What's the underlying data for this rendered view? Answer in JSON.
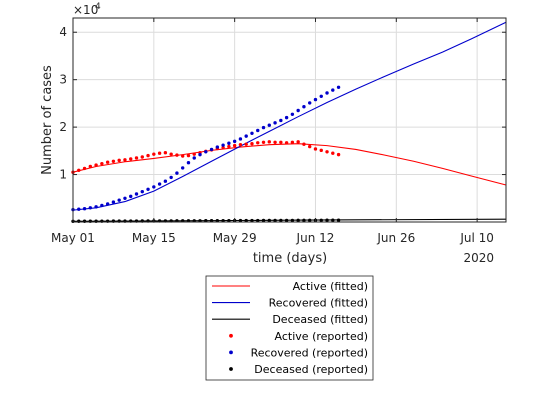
{
  "chart_data": {
    "type": "line",
    "xlabel": "time (days)",
    "ylabel": "Number of cases",
    "y_exponent_label": "×10",
    "y_exponent_power": "4",
    "year_label": "2020",
    "x_ticks": [
      {
        "label": "May 01",
        "date": "2020-05-01"
      },
      {
        "label": "May 15",
        "date": "2020-05-15"
      },
      {
        "label": "May 29",
        "date": "2020-05-29"
      },
      {
        "label": "Jun 12",
        "date": "2020-06-12"
      },
      {
        "label": "Jun 26",
        "date": "2020-06-26"
      },
      {
        "label": "Jul 10",
        "date": "2020-07-10"
      }
    ],
    "xlim": [
      "2020-05-01",
      "2020-07-15"
    ],
    "y_ticks": [
      {
        "label": "1",
        "value": 10000
      },
      {
        "label": "2",
        "value": 20000
      },
      {
        "label": "3",
        "value": 30000
      },
      {
        "label": "4",
        "value": 40000
      }
    ],
    "ylim": [
      0,
      43000
    ],
    "grid": true,
    "legend_position": "below",
    "colors": {
      "active": "#ff0000",
      "recovered": "#0000cc",
      "deceased": "#000000"
    },
    "series": [
      {
        "name": "Active (fitted)",
        "kind": "line",
        "color": "#ff0000",
        "points": [
          [
            "2020-05-01",
            10500
          ],
          [
            "2020-05-05",
            11700
          ],
          [
            "2020-05-10",
            12700
          ],
          [
            "2020-05-15",
            13400
          ],
          [
            "2020-05-20",
            14200
          ],
          [
            "2020-05-25",
            15100
          ],
          [
            "2020-05-30",
            15800
          ],
          [
            "2020-06-04",
            16300
          ],
          [
            "2020-06-09",
            16500
          ],
          [
            "2020-06-14",
            16100
          ],
          [
            "2020-06-19",
            15300
          ],
          [
            "2020-06-24",
            14100
          ],
          [
            "2020-06-29",
            12800
          ],
          [
            "2020-07-04",
            11300
          ],
          [
            "2020-07-09",
            9700
          ],
          [
            "2020-07-15",
            7800
          ]
        ]
      },
      {
        "name": "Recovered (fitted)",
        "kind": "line",
        "color": "#0000cc",
        "points": [
          [
            "2020-05-01",
            2500
          ],
          [
            "2020-05-05",
            3000
          ],
          [
            "2020-05-10",
            4300
          ],
          [
            "2020-05-15",
            6500
          ],
          [
            "2020-05-20",
            9600
          ],
          [
            "2020-05-25",
            12800
          ],
          [
            "2020-05-30",
            16000
          ],
          [
            "2020-06-04",
            19100
          ],
          [
            "2020-06-09",
            22200
          ],
          [
            "2020-06-14",
            25200
          ],
          [
            "2020-06-19",
            28000
          ],
          [
            "2020-06-24",
            30700
          ],
          [
            "2020-06-29",
            33300
          ],
          [
            "2020-07-04",
            35800
          ],
          [
            "2020-07-09",
            38600
          ],
          [
            "2020-07-15",
            42100
          ]
        ]
      },
      {
        "name": "Deceased (fitted)",
        "kind": "line",
        "color": "#000000",
        "points": [
          [
            "2020-05-01",
            150
          ],
          [
            "2020-05-20",
            250
          ],
          [
            "2020-06-10",
            400
          ],
          [
            "2020-07-15",
            600
          ]
        ]
      },
      {
        "name": "Active (reported)",
        "kind": "dots",
        "color": "#ff0000",
        "points": [
          [
            "2020-05-01",
            10500
          ],
          [
            "2020-05-02",
            10900
          ],
          [
            "2020-05-03",
            11300
          ],
          [
            "2020-05-04",
            11700
          ],
          [
            "2020-05-05",
            12000
          ],
          [
            "2020-05-06",
            12300
          ],
          [
            "2020-05-07",
            12600
          ],
          [
            "2020-05-08",
            12800
          ],
          [
            "2020-05-09",
            13000
          ],
          [
            "2020-05-10",
            13100
          ],
          [
            "2020-05-11",
            13300
          ],
          [
            "2020-05-12",
            13500
          ],
          [
            "2020-05-13",
            13700
          ],
          [
            "2020-05-14",
            14000
          ],
          [
            "2020-05-15",
            14300
          ],
          [
            "2020-05-16",
            14500
          ],
          [
            "2020-05-17",
            14600
          ],
          [
            "2020-05-18",
            14300
          ],
          [
            "2020-05-19",
            14100
          ],
          [
            "2020-05-20",
            13900
          ],
          [
            "2020-05-21",
            14000
          ],
          [
            "2020-05-22",
            14300
          ],
          [
            "2020-05-23",
            14600
          ],
          [
            "2020-05-24",
            14900
          ],
          [
            "2020-05-25",
            15200
          ],
          [
            "2020-05-26",
            15500
          ],
          [
            "2020-05-27",
            15700
          ],
          [
            "2020-05-28",
            15900
          ],
          [
            "2020-05-29",
            16100
          ],
          [
            "2020-05-30",
            16300
          ],
          [
            "2020-05-31",
            16400
          ],
          [
            "2020-06-01",
            16500
          ],
          [
            "2020-06-02",
            16700
          ],
          [
            "2020-06-03",
            16800
          ],
          [
            "2020-06-04",
            16900
          ],
          [
            "2020-06-05",
            16800
          ],
          [
            "2020-06-06",
            16800
          ],
          [
            "2020-06-07",
            16700
          ],
          [
            "2020-06-08",
            16800
          ],
          [
            "2020-06-09",
            16900
          ],
          [
            "2020-06-10",
            16400
          ],
          [
            "2020-06-11",
            15900
          ],
          [
            "2020-06-12",
            15400
          ],
          [
            "2020-06-13",
            15100
          ],
          [
            "2020-06-14",
            14800
          ],
          [
            "2020-06-15",
            14500
          ],
          [
            "2020-06-16",
            14200
          ]
        ]
      },
      {
        "name": "Recovered (reported)",
        "kind": "dots",
        "color": "#0000cc",
        "points": [
          [
            "2020-05-01",
            2600
          ],
          [
            "2020-05-02",
            2700
          ],
          [
            "2020-05-03",
            2800
          ],
          [
            "2020-05-04",
            3000
          ],
          [
            "2020-05-05",
            3200
          ],
          [
            "2020-05-06",
            3500
          ],
          [
            "2020-05-07",
            3800
          ],
          [
            "2020-05-08",
            4200
          ],
          [
            "2020-05-09",
            4600
          ],
          [
            "2020-05-10",
            5000
          ],
          [
            "2020-05-11",
            5400
          ],
          [
            "2020-05-12",
            5900
          ],
          [
            "2020-05-13",
            6400
          ],
          [
            "2020-05-14",
            6900
          ],
          [
            "2020-05-15",
            7400
          ],
          [
            "2020-05-16",
            8000
          ],
          [
            "2020-05-17",
            8600
          ],
          [
            "2020-05-18",
            9400
          ],
          [
            "2020-05-19",
            10300
          ],
          [
            "2020-05-20",
            11400
          ],
          [
            "2020-05-21",
            12500
          ],
          [
            "2020-05-22",
            13500
          ],
          [
            "2020-05-23",
            14200
          ],
          [
            "2020-05-24",
            14800
          ],
          [
            "2020-05-25",
            15300
          ],
          [
            "2020-05-26",
            15800
          ],
          [
            "2020-05-27",
            16200
          ],
          [
            "2020-05-28",
            16600
          ],
          [
            "2020-05-29",
            17000
          ],
          [
            "2020-05-30",
            17500
          ],
          [
            "2020-05-31",
            18100
          ],
          [
            "2020-06-01",
            18700
          ],
          [
            "2020-06-02",
            19300
          ],
          [
            "2020-06-03",
            19900
          ],
          [
            "2020-06-04",
            20400
          ],
          [
            "2020-06-05",
            20900
          ],
          [
            "2020-06-06",
            21400
          ],
          [
            "2020-06-07",
            22000
          ],
          [
            "2020-06-08",
            22700
          ],
          [
            "2020-06-09",
            23500
          ],
          [
            "2020-06-10",
            24300
          ],
          [
            "2020-06-11",
            25100
          ],
          [
            "2020-06-12",
            25800
          ],
          [
            "2020-06-13",
            26500
          ],
          [
            "2020-06-14",
            27200
          ],
          [
            "2020-06-15",
            27800
          ],
          [
            "2020-06-16",
            28400
          ]
        ]
      },
      {
        "name": "Deceased  (reported)",
        "kind": "dots",
        "color": "#000000",
        "points": [
          [
            "2020-05-01",
            150
          ],
          [
            "2020-05-02",
            155
          ],
          [
            "2020-05-03",
            160
          ],
          [
            "2020-05-04",
            165
          ],
          [
            "2020-05-05",
            170
          ],
          [
            "2020-05-06",
            175
          ],
          [
            "2020-05-07",
            180
          ],
          [
            "2020-05-08",
            185
          ],
          [
            "2020-05-09",
            190
          ],
          [
            "2020-05-10",
            195
          ],
          [
            "2020-05-11",
            200
          ],
          [
            "2020-05-12",
            205
          ],
          [
            "2020-05-13",
            210
          ],
          [
            "2020-05-14",
            215
          ],
          [
            "2020-05-15",
            220
          ],
          [
            "2020-05-16",
            225
          ],
          [
            "2020-05-17",
            230
          ],
          [
            "2020-05-18",
            235
          ],
          [
            "2020-05-19",
            240
          ],
          [
            "2020-05-20",
            245
          ],
          [
            "2020-05-21",
            250
          ],
          [
            "2020-05-22",
            255
          ],
          [
            "2020-05-23",
            260
          ],
          [
            "2020-05-24",
            265
          ],
          [
            "2020-05-25",
            270
          ],
          [
            "2020-05-26",
            275
          ],
          [
            "2020-05-27",
            280
          ],
          [
            "2020-05-28",
            285
          ],
          [
            "2020-05-29",
            290
          ],
          [
            "2020-05-30",
            295
          ],
          [
            "2020-05-31",
            300
          ],
          [
            "2020-06-01",
            305
          ],
          [
            "2020-06-02",
            310
          ],
          [
            "2020-06-03",
            315
          ],
          [
            "2020-06-04",
            320
          ],
          [
            "2020-06-05",
            325
          ],
          [
            "2020-06-06",
            330
          ],
          [
            "2020-06-07",
            335
          ],
          [
            "2020-06-08",
            340
          ],
          [
            "2020-06-09",
            345
          ],
          [
            "2020-06-10",
            350
          ],
          [
            "2020-06-11",
            355
          ],
          [
            "2020-06-12",
            360
          ],
          [
            "2020-06-13",
            365
          ],
          [
            "2020-06-14",
            370
          ],
          [
            "2020-06-15",
            375
          ],
          [
            "2020-06-16",
            380
          ]
        ]
      }
    ]
  }
}
